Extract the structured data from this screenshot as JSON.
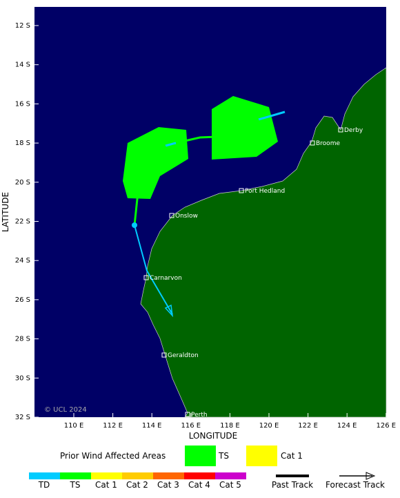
{
  "map": {
    "axis_labels": {
      "y": "LATITUDE",
      "x": "LONGITUDE"
    },
    "lat_ticks": [
      "12 S",
      "14 S",
      "16 S",
      "18 S",
      "20 S",
      "22 S",
      "24 S",
      "26 S",
      "28 S",
      "30 S",
      "32 S"
    ],
    "lon_ticks": [
      "110 E",
      "112 E",
      "114 E",
      "116 E",
      "118 E",
      "120 E",
      "122 E",
      "124 E",
      "126 E"
    ],
    "places": [
      "Derby",
      "Broome",
      "Port Hedland",
      "Onslow",
      "Carnarvon",
      "Geraldton",
      "Perth"
    ],
    "copyright": "© UCL 2024"
  },
  "legend": {
    "areas_title": "Prior Wind Affected Areas",
    "areas": [
      "TS",
      "Cat 1"
    ],
    "scale": [
      "TD",
      "TS",
      "Cat 1",
      "Cat 2",
      "Cat 3",
      "Cat 4",
      "Cat 5"
    ],
    "past_track": "Past Track",
    "forecast_track": "Forecast Track"
  }
}
